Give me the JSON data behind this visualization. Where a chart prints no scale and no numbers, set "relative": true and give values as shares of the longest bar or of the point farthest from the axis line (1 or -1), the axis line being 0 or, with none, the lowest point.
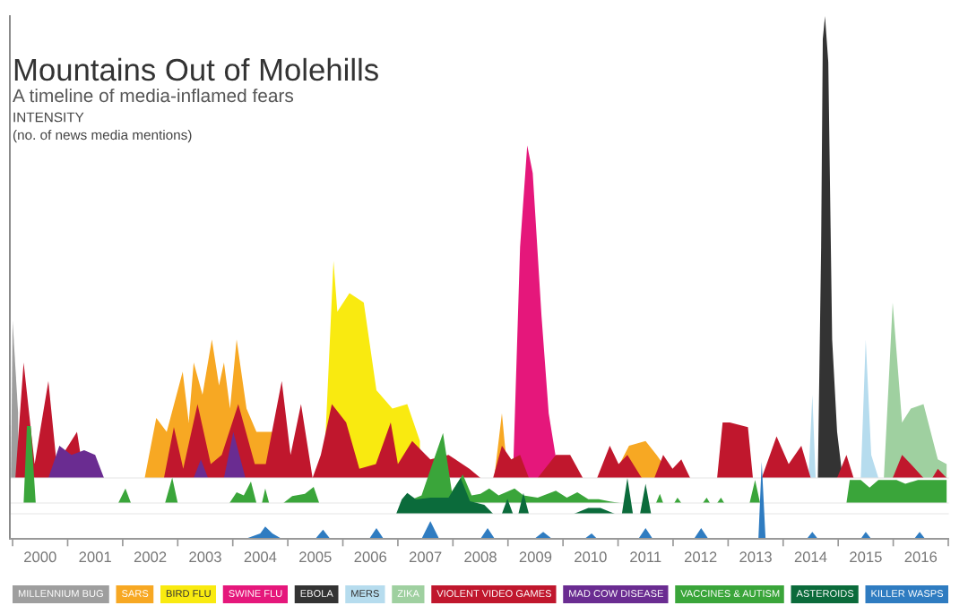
{
  "chart_data": [
    {
      "type": "area",
      "relative": true,
      "title": "Mountains Out of Molehills",
      "subtitle": "A timeline of media-inflamed fears",
      "ylabel": "INTENSITY\n(no. of news media mentions)",
      "xlim": [
        1999.95,
        2017
      ],
      "tick_labels": false,
      "legend": "bottom",
      "series": [
        {
          "name": "MILLENNIUM BUG",
          "color": "#9e9e9e",
          "x": [
            1999.97,
            2000.0,
            2000.1
          ],
          "values": [
            0,
            0.34,
            0.14
          ]
        },
        {
          "name": "SARS",
          "color": "#f7a823",
          "x": [
            2002.4,
            2002.61,
            2002.8,
            2003.09,
            2003.2,
            2003.29,
            2003.45,
            2003.62,
            2003.75,
            2003.84,
            2003.95,
            2004.07,
            2004.25,
            2004.43,
            2004.72,
            2004.98,
            2005.2,
            2005.4,
            2008.75,
            2008.89,
            2009.0,
            2010.9,
            2011.2,
            2011.5,
            2011.7,
            2012.0
          ],
          "values": [
            0,
            0.13,
            0.1,
            0.23,
            0.12,
            0.25,
            0.18,
            0.3,
            0.2,
            0.25,
            0.15,
            0.3,
            0.15,
            0.1,
            0.1,
            null,
            null,
            0,
            0,
            0.14,
            0,
            0,
            0.07,
            0.08,
            0.05,
            0
          ]
        },
        {
          "name": "BIRD FLU",
          "color": "#f9ea10",
          "x": [
            2005.65,
            2005.83,
            2005.9,
            2006.12,
            2006.38,
            2006.61,
            2006.9,
            2007.17,
            2007.4
          ],
          "values": [
            0,
            0.47,
            0.36,
            0.4,
            0.38,
            0.19,
            0.15,
            0.16,
            0.08
          ]
        },
        {
          "name": "SWINE FLU",
          "color": "#e5177b",
          "x": [
            2009.09,
            2009.22,
            2009.35,
            2009.45,
            2009.61,
            2009.74,
            2009.93
          ],
          "values": [
            0,
            0.5,
            0.72,
            0.66,
            0.35,
            0.14,
            0
          ]
        },
        {
          "name": "EBOLA",
          "color": "#333333",
          "x": [
            2014.63,
            2014.69,
            2014.72,
            2014.76,
            2014.82,
            2014.89,
            2014.98,
            2015.08
          ],
          "values": [
            0,
            0.5,
            0.95,
            1.0,
            0.9,
            0.3,
            0.1,
            0
          ]
        },
        {
          "name": "MERS",
          "color": "#b6dcee",
          "x": [
            2014.46,
            2014.53,
            2014.59,
            2015.41,
            2015.5,
            2015.6,
            2015.73
          ],
          "values": [
            0,
            0.18,
            0,
            0,
            0.3,
            0.05,
            0
          ]
        },
        {
          "name": "ZIKA",
          "color": "#9fd0a0",
          "x": [
            2015.83,
            2015.99,
            2016.16,
            2016.32,
            2016.55,
            2016.81,
            2016.97
          ],
          "values": [
            0,
            0.38,
            0.12,
            0.15,
            0.16,
            0.04,
            0.03
          ]
        },
        {
          "name": "VIOLENT VIDEO GAMES",
          "color": "#c0172d",
          "x": [
            2000.05,
            2000.2,
            2000.4,
            2000.65,
            2000.8,
            2001.17,
            2001.3,
            2002.75,
            2002.93,
            2003.1,
            2003.36,
            2003.6,
            2003.8,
            2004.1,
            2004.4,
            2004.6,
            2004.89,
            2005.05,
            2005.24,
            2005.45,
            2005.6,
            2005.8,
            2006.06,
            2006.3,
            2006.6,
            2006.87,
            2007.0,
            2007.26,
            2007.59,
            2007.92,
            2008.3,
            2008.5,
            2008.73,
            2008.89,
            2009.06,
            2009.22,
            2009.38,
            2009.54,
            2009.87,
            2010.13,
            2010.36,
            2010.62,
            2010.85,
            2011.01,
            2011.17,
            2011.43,
            2011.66,
            2011.82,
            2011.99,
            2012.15,
            2012.31,
            2012.8,
            2012.9,
            2013.03,
            2013.36,
            2013.45,
            2013.61,
            2013.88,
            2014.1,
            2014.33,
            2014.5,
            2014.98,
            2015.15,
            2015.28,
            2015.99,
            2016.16,
            2016.32,
            2016.55,
            2016.71,
            2016.81,
            2016.97
          ],
          "values": [
            0,
            0.25,
            0.03,
            0.21,
            0.03,
            0.1,
            0,
            0,
            0.11,
            0.02,
            0.16,
            0.03,
            0.05,
            0.16,
            0.03,
            0.03,
            0.21,
            0.05,
            0.16,
            0,
            0.05,
            0.16,
            0.12,
            0.02,
            0.03,
            0.12,
            0.03,
            0.08,
            0.04,
            0.05,
            0.02,
            0,
            0,
            0.07,
            0.04,
            0.05,
            0,
            0,
            0.05,
            0.05,
            0,
            0,
            0.07,
            0.03,
            0.05,
            0,
            0,
            0.05,
            0.02,
            0.04,
            0,
            0,
            0.12,
            0.12,
            0.11,
            0,
            0,
            0.09,
            0.03,
            0.07,
            0,
            0,
            0.05,
            0,
            0,
            0.05,
            0.03,
            0,
            0,
            0.02,
            0
          ]
        },
        {
          "name": "MAD COW DISEASE",
          "color": "#6a2c91",
          "x": [
            2000.65,
            2000.85,
            2001.07,
            2001.3,
            2001.5,
            2001.66,
            2003.29,
            2003.42,
            2003.55,
            2003.84,
            2004.01,
            2004.23
          ],
          "values": [
            0,
            0.07,
            0.05,
            0.06,
            0.05,
            0,
            0,
            0.04,
            0,
            0,
            0.1,
            0
          ]
        }
      ]
    },
    {
      "type": "area",
      "relative": true,
      "xlim": [
        1999.95,
        2017
      ],
      "tick_labels": false,
      "legend": "bottom",
      "series": [
        {
          "name": "VACCINES & AUTISM",
          "color": "#3aa53a",
          "x": [
            2000.2,
            2000.26,
            2000.33,
            2000.42,
            2001.92,
            2002.05,
            2002.15,
            2002.77,
            2002.9,
            2003.0,
            2003.94,
            2004.07,
            2004.2,
            2004.33,
            2004.43,
            2004.53,
            2004.59,
            2004.66,
            2004.92,
            2005.08,
            2005.31,
            2005.47,
            2005.57,
            2007.1,
            2007.43,
            2007.82,
            2007.98,
            2008.18,
            2008.34,
            2008.5,
            2008.66,
            2008.83,
            2009.12,
            2009.28,
            2009.54,
            2009.87,
            2010.07,
            2010.26,
            2010.46,
            2010.65,
            2010.85,
            2011.04,
            2011.69,
            2011.76,
            2011.82,
            2012.02,
            2012.08,
            2012.15,
            2012.54,
            2012.61,
            2012.67,
            2012.8,
            2012.87,
            2012.93,
            2013.39,
            2013.49,
            2013.58,
            2015.15,
            2015.21,
            2015.41,
            2015.57,
            2015.73,
            2016.06,
            2016.22,
            2016.45,
            2016.71,
            2016.97
          ],
          "values": [
            0,
            1.0,
            1.0,
            0,
            0,
            0.19,
            0,
            0,
            0.33,
            0,
            0,
            0.14,
            0.1,
            0.28,
            0,
            0,
            0.19,
            0,
            0,
            0.09,
            0.12,
            0.21,
            0,
            0,
            0.1,
            0.91,
            0.15,
            0.37,
            0.1,
            0.12,
            0.19,
            0.1,
            0.19,
            0.1,
            0.07,
            0.16,
            0.07,
            0.14,
            0.05,
            0.05,
            0.02,
            0,
            0,
            0.12,
            0,
            0,
            0.07,
            0,
            0,
            0.07,
            0,
            0,
            0.07,
            0,
            0,
            0.3,
            0,
            0,
            0.3,
            0.3,
            0.2,
            0.3,
            0.3,
            0.25,
            0.3,
            0.3,
            0.3
          ]
        }
      ]
    },
    {
      "type": "area",
      "relative": true,
      "xlim": [
        1999.95,
        2017
      ],
      "tick_labels": false,
      "legend": "bottom",
      "series": [
        {
          "name": "ASTEROIDS",
          "color": "#0b6b3b",
          "x": [
            2006.97,
            2007.07,
            2007.17,
            2007.33,
            2007.59,
            2007.92,
            2008.14,
            2008.31,
            2008.57,
            2008.73,
            2008.89,
            2008.99,
            2009.09,
            2009.19,
            2009.28,
            2009.38,
            2010.2,
            2010.46,
            2010.68,
            2010.94,
            2011.07,
            2011.17,
            2011.27,
            2011.4,
            2011.5,
            2011.6
          ],
          "values": [
            0,
            0.4,
            0.58,
            0.4,
            0.45,
            0.45,
            1.0,
            0.35,
            0.25,
            0,
            0,
            0.42,
            0,
            0,
            0.58,
            0,
            0,
            0.16,
            0.16,
            0,
            0,
            1.0,
            0,
            0,
            0.84,
            0
          ]
        }
      ]
    },
    {
      "type": "area",
      "relative": true,
      "xlim": [
        1999.95,
        2017
      ],
      "tick_labels": "x",
      "legend": "bottom",
      "xticks": [
        {
          "value": 2000,
          "label": null
        },
        {
          "value": 2000.5,
          "label": "2000"
        },
        {
          "value": 2001,
          "label": null
        },
        {
          "value": 2001.5,
          "label": "2001"
        },
        {
          "value": 2002,
          "label": null
        },
        {
          "value": 2002.5,
          "label": "2002"
        },
        {
          "value": 2003,
          "label": null
        },
        {
          "value": 2003.5,
          "label": "2003"
        },
        {
          "value": 2004,
          "label": null
        },
        {
          "value": 2004.5,
          "label": "2004"
        },
        {
          "value": 2005,
          "label": null
        },
        {
          "value": 2005.5,
          "label": "2005"
        },
        {
          "value": 2006,
          "label": null
        },
        {
          "value": 2006.5,
          "label": "2006"
        },
        {
          "value": 2007,
          "label": null
        },
        {
          "value": 2007.5,
          "label": "2007"
        },
        {
          "value": 2008,
          "label": null
        },
        {
          "value": 2008.5,
          "label": "2008"
        },
        {
          "value": 2009,
          "label": null
        },
        {
          "value": 2009.5,
          "label": "2009"
        },
        {
          "value": 2010,
          "label": null
        },
        {
          "value": 2010.5,
          "label": "2010"
        },
        {
          "value": 2011,
          "label": null
        },
        {
          "value": 2011.5,
          "label": "2011"
        },
        {
          "value": 2012,
          "label": null
        },
        {
          "value": 2012.5,
          "label": "2012"
        },
        {
          "value": 2013,
          "label": null
        },
        {
          "value": 2013.5,
          "label": "2013"
        },
        {
          "value": 2014,
          "label": null
        },
        {
          "value": 2014.5,
          "label": "2014"
        },
        {
          "value": 2015,
          "label": null
        },
        {
          "value": 2015.5,
          "label": "2015"
        },
        {
          "value": 2016,
          "label": null
        },
        {
          "value": 2016.5,
          "label": "2016"
        },
        {
          "value": 2017,
          "label": null
        }
      ],
      "series": [
        {
          "name": "KILLER WASPS",
          "color": "#2f7cc1",
          "x": [
            2004.23,
            2004.5,
            2004.59,
            2004.72,
            2004.89,
            2005.5,
            2005.64,
            2005.77,
            2006.48,
            2006.61,
            2006.74,
            2007.43,
            2007.59,
            2007.75,
            2008.5,
            2008.63,
            2008.76,
            2009.48,
            2009.64,
            2009.8,
            2010.39,
            2010.52,
            2010.62,
            2011.37,
            2011.5,
            2011.63,
            2012.38,
            2012.51,
            2012.64,
            2013.55,
            2013.61,
            2013.68,
            2014.43,
            2014.53,
            2014.63,
            2015.41,
            2015.5,
            2015.6,
            2016.38,
            2016.48,
            2016.58
          ],
          "values": [
            0,
            0.07,
            0.16,
            0.07,
            0,
            0,
            0.12,
            0,
            0,
            0.14,
            0,
            0,
            0.23,
            0,
            0,
            0.14,
            0,
            0,
            0.09,
            0,
            0,
            0.07,
            0,
            0,
            0.14,
            0,
            0,
            0.14,
            0,
            0,
            1.0,
            0,
            0,
            0.09,
            0,
            0,
            0.09,
            0,
            0,
            0.09,
            0
          ]
        }
      ]
    }
  ]
}
